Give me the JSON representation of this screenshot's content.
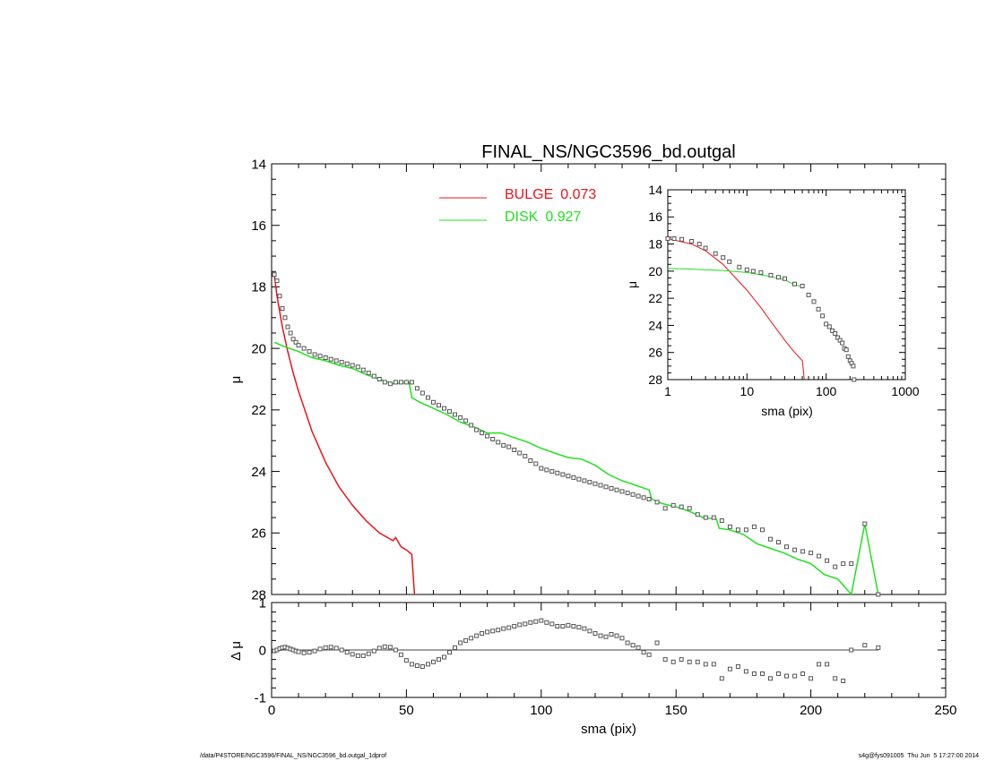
{
  "title": "FINAL_NS/NGC3596_bd.outgal",
  "footer": {
    "path": "/data/P4STORE/NGC3596/FINAL_NS/NGC3596_bd.outgal_1dprof",
    "user_stamp": "s4g@fys091005  Thu Jun  5 17:27:00 2014"
  },
  "colors": {
    "bulge": "#e8141a",
    "disk": "#1ee21e",
    "data": "#555555",
    "axis": "#000000"
  },
  "chart_data": [
    {
      "panel": "main",
      "type": "line",
      "title": "FINAL_NS/NGC3596_bd.outgal",
      "xlabel": "sma (pix)",
      "ylabel": "μ",
      "xlim": [
        0,
        250
      ],
      "ylim": [
        28,
        14
      ],
      "x_ticks": [
        0,
        50,
        100,
        150,
        200,
        250
      ],
      "y_ticks": [
        14,
        16,
        18,
        20,
        22,
        24,
        26,
        28
      ],
      "legend": {
        "placement": "top-center",
        "entries": [
          {
            "label": "BULGE",
            "value": "0.073",
            "color": "#e8141a"
          },
          {
            "label": "DISK",
            "value": "0.927",
            "color": "#1ee21e"
          }
        ]
      },
      "series": [
        {
          "name": "BULGE",
          "style": "line",
          "color": "#e8141a",
          "x": [
            1,
            2,
            4,
            6,
            8,
            10,
            15,
            20,
            25,
            30,
            35,
            40,
            45,
            46,
            47,
            48,
            50,
            52,
            53
          ],
          "y": [
            17.6,
            18.3,
            19.3,
            20.1,
            20.8,
            21.4,
            22.7,
            23.7,
            24.5,
            25.1,
            25.6,
            26.0,
            26.25,
            26.15,
            26.3,
            26.45,
            26.55,
            26.7,
            28.0
          ]
        },
        {
          "name": "DISK",
          "style": "line",
          "color": "#1ee21e",
          "x": [
            1,
            5,
            10,
            15,
            20,
            25,
            30,
            35,
            40,
            45,
            51,
            52,
            55,
            60,
            65,
            70,
            75,
            80,
            85,
            90,
            95,
            100,
            105,
            110,
            115,
            120,
            125,
            130,
            135,
            140,
            141,
            145,
            150,
            155,
            160,
            165,
            166,
            170,
            175,
            180,
            185,
            190,
            195,
            200,
            205,
            210,
            215,
            220,
            225
          ],
          "y": [
            19.8,
            19.95,
            20.1,
            20.3,
            20.4,
            20.55,
            20.65,
            20.85,
            21.0,
            21.15,
            21.1,
            21.6,
            21.75,
            21.95,
            22.15,
            22.4,
            22.55,
            22.75,
            22.75,
            22.9,
            23.05,
            23.25,
            23.4,
            23.55,
            23.6,
            23.8,
            24.1,
            24.3,
            24.45,
            24.6,
            24.9,
            25.05,
            25.15,
            25.3,
            25.5,
            25.55,
            25.85,
            25.9,
            26.05,
            26.35,
            26.5,
            26.65,
            26.85,
            27.0,
            27.35,
            27.5,
            28.0,
            25.7,
            28.0
          ]
        },
        {
          "name": "data",
          "style": "squares",
          "color": "#555555",
          "x": [
            1,
            2,
            3,
            4,
            5,
            6,
            7,
            8,
            9,
            10,
            12,
            14,
            16,
            18,
            20,
            22,
            24,
            26,
            28,
            30,
            32,
            34,
            36,
            38,
            40,
            42,
            44,
            46,
            48,
            50,
            52,
            54,
            56,
            58,
            60,
            62,
            64,
            66,
            68,
            70,
            72,
            74,
            76,
            78,
            80,
            82,
            84,
            86,
            88,
            90,
            92,
            94,
            96,
            98,
            100,
            102,
            104,
            106,
            108,
            110,
            112,
            114,
            116,
            118,
            120,
            122,
            124,
            126,
            128,
            130,
            132,
            134,
            136,
            138,
            140,
            143,
            146,
            149,
            152,
            155,
            158,
            161,
            164,
            167,
            170,
            173,
            176,
            179,
            182,
            185,
            188,
            191,
            194,
            197,
            200,
            203,
            206,
            209,
            212,
            215,
            220,
            225
          ],
          "y": [
            17.6,
            17.8,
            18.3,
            18.7,
            19.0,
            19.3,
            19.5,
            19.7,
            19.8,
            19.9,
            20.0,
            20.1,
            20.2,
            20.25,
            20.3,
            20.35,
            20.4,
            20.45,
            20.5,
            20.55,
            20.6,
            20.7,
            20.8,
            20.9,
            21.0,
            21.1,
            21.15,
            21.1,
            21.1,
            21.1,
            21.1,
            21.3,
            21.45,
            21.6,
            21.75,
            21.85,
            21.95,
            22.05,
            22.15,
            22.25,
            22.35,
            22.5,
            22.65,
            22.75,
            22.85,
            22.95,
            23.05,
            23.15,
            23.2,
            23.3,
            23.4,
            23.5,
            23.65,
            23.75,
            23.9,
            23.95,
            24.0,
            24.05,
            24.1,
            24.15,
            24.2,
            24.25,
            24.3,
            24.35,
            24.4,
            24.45,
            24.5,
            24.55,
            24.6,
            24.65,
            24.7,
            24.75,
            24.8,
            24.85,
            24.9,
            25.0,
            25.2,
            25.1,
            25.15,
            25.2,
            25.4,
            25.5,
            25.5,
            25.6,
            25.8,
            25.9,
            25.9,
            25.8,
            25.9,
            26.2,
            26.3,
            26.45,
            26.55,
            26.6,
            26.65,
            26.75,
            26.9,
            27.1,
            27.0,
            27.0,
            25.7,
            28.0
          ]
        }
      ]
    },
    {
      "panel": "residual",
      "type": "scatter",
      "xlabel": "sma (pix)",
      "ylabel": "Δ μ",
      "xlim": [
        0,
        250
      ],
      "ylim": [
        -1,
        1
      ],
      "x_ticks": [
        0,
        50,
        100,
        150,
        200,
        250
      ],
      "y_ticks": [
        1,
        0,
        -1
      ],
      "zero_line": true,
      "series": [
        {
          "name": "residual",
          "style": "squares",
          "color": "#555555",
          "x": [
            1,
            2,
            3,
            4,
            5,
            6,
            7,
            8,
            9,
            10,
            12,
            14,
            16,
            18,
            20,
            22,
            24,
            26,
            28,
            30,
            32,
            34,
            36,
            38,
            40,
            42,
            44,
            46,
            48,
            50,
            52,
            54,
            56,
            58,
            60,
            62,
            64,
            66,
            68,
            70,
            72,
            74,
            76,
            78,
            80,
            82,
            84,
            86,
            88,
            90,
            92,
            94,
            96,
            98,
            100,
            102,
            104,
            106,
            108,
            110,
            112,
            114,
            116,
            118,
            120,
            122,
            124,
            126,
            128,
            130,
            132,
            134,
            136,
            138,
            140,
            143,
            146,
            149,
            152,
            155,
            158,
            161,
            164,
            167,
            170,
            173,
            176,
            179,
            182,
            185,
            188,
            191,
            194,
            197,
            200,
            203,
            206,
            209,
            212,
            215,
            220,
            225
          ],
          "y": [
            -0.02,
            0.0,
            0.03,
            0.05,
            0.06,
            0.04,
            0.02,
            0.0,
            -0.02,
            -0.04,
            -0.06,
            -0.05,
            -0.02,
            0.02,
            0.05,
            0.06,
            0.04,
            0.0,
            -0.05,
            -0.09,
            -0.12,
            -0.12,
            -0.08,
            -0.02,
            0.04,
            0.07,
            0.06,
            0.0,
            -0.1,
            -0.22,
            -0.3,
            -0.33,
            -0.35,
            -0.3,
            -0.25,
            -0.2,
            -0.15,
            -0.05,
            0.05,
            0.15,
            0.2,
            0.25,
            0.3,
            0.35,
            0.38,
            0.4,
            0.42,
            0.45,
            0.47,
            0.5,
            0.53,
            0.55,
            0.58,
            0.6,
            0.62,
            0.58,
            0.55,
            0.5,
            0.5,
            0.52,
            0.5,
            0.48,
            0.45,
            0.4,
            0.35,
            0.3,
            0.28,
            0.33,
            0.3,
            0.25,
            0.15,
            0.1,
            0.05,
            -0.05,
            -0.1,
            0.15,
            -0.2,
            -0.25,
            -0.2,
            -0.25,
            -0.25,
            -0.3,
            -0.3,
            -0.6,
            -0.4,
            -0.35,
            -0.45,
            -0.5,
            -0.5,
            -0.6,
            -0.5,
            -0.55,
            -0.55,
            -0.5,
            -0.6,
            -0.3,
            -0.3,
            -0.6,
            -0.65,
            0.0,
            0.1,
            0.05
          ]
        }
      ]
    },
    {
      "panel": "inset",
      "type": "line",
      "xlabel": "sma (pix)",
      "ylabel": "μ",
      "xscale": "log",
      "xlim": [
        1,
        1000
      ],
      "ylim": [
        28,
        14
      ],
      "x_ticks": [
        1,
        10,
        100,
        1000
      ],
      "y_ticks": [
        14,
        16,
        18,
        20,
        22,
        24,
        26,
        28
      ],
      "series": [
        {
          "name": "BULGE",
          "style": "line",
          "color": "#e8141a",
          "x": [
            1,
            2,
            3,
            5,
            8,
            10,
            15,
            20,
            30,
            40,
            50,
            53
          ],
          "y": [
            17.6,
            18.0,
            18.5,
            19.5,
            20.8,
            21.4,
            22.7,
            23.7,
            25.1,
            26.0,
            26.6,
            28.0
          ]
        },
        {
          "name": "DISK",
          "style": "line",
          "color": "#1ee21e",
          "x": [
            1,
            2,
            5,
            10,
            20,
            30,
            40,
            50
          ],
          "y": [
            19.8,
            19.85,
            19.95,
            20.1,
            20.4,
            20.65,
            21.0,
            21.15
          ]
        },
        {
          "name": "data",
          "style": "squares",
          "color": "#555555",
          "x": [
            1,
            1.2,
            1.5,
            2,
            2.5,
            3,
            4,
            5,
            6,
            8,
            10,
            12,
            15,
            20,
            25,
            30,
            40,
            50,
            60,
            70,
            80,
            90,
            100,
            110,
            120,
            130,
            140,
            150,
            160,
            170,
            180,
            190,
            200,
            210,
            220,
            225
          ],
          "y": [
            17.6,
            17.6,
            17.65,
            17.8,
            18.0,
            18.3,
            18.7,
            19.0,
            19.3,
            19.7,
            19.9,
            20.0,
            20.1,
            20.3,
            20.45,
            20.55,
            20.95,
            21.1,
            21.75,
            22.25,
            22.8,
            23.3,
            23.9,
            24.1,
            24.4,
            24.6,
            24.9,
            25.1,
            25.3,
            25.7,
            25.8,
            26.3,
            26.6,
            26.8,
            27.0,
            28.0
          ]
        }
      ]
    }
  ]
}
